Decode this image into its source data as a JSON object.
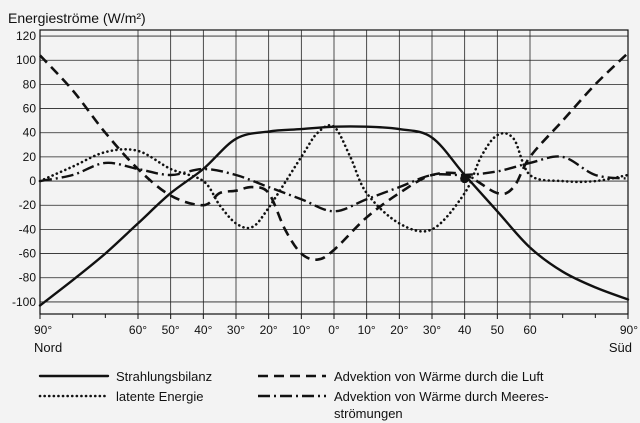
{
  "chart_data": {
    "type": "line",
    "title": "Energieströme (W/m²)",
    "ylim": [
      -110,
      125
    ],
    "yticks": [
      120,
      100,
      80,
      60,
      40,
      20,
      0,
      -20,
      -40,
      -60,
      -80,
      -100
    ],
    "x_ticks": [
      {
        "deg": 90,
        "label": "90°"
      },
      {
        "deg": 60,
        "label": "60°"
      },
      {
        "deg": 50,
        "label": "50°"
      },
      {
        "deg": 40,
        "label": "40°"
      },
      {
        "deg": 30,
        "label": "30°"
      },
      {
        "deg": 20,
        "label": "20°"
      },
      {
        "deg": 10,
        "label": "10°"
      },
      {
        "deg": 0,
        "label": "0°"
      },
      {
        "deg": -10,
        "label": "10°"
      },
      {
        "deg": -20,
        "label": "20°"
      },
      {
        "deg": -30,
        "label": "30°"
      },
      {
        "deg": -40,
        "label": "40"
      },
      {
        "deg": -50,
        "label": "50"
      },
      {
        "deg": -60,
        "label": "60"
      },
      {
        "deg": -90,
        "label": "90°"
      }
    ],
    "x_end_labels": {
      "left": "Nord",
      "right": "Süd"
    },
    "series": [
      {
        "name": "Strahlungsbilanz",
        "style": "solid",
        "points": [
          [
            90,
            -103
          ],
          [
            80,
            -82
          ],
          [
            70,
            -60
          ],
          [
            60,
            -35
          ],
          [
            50,
            -10
          ],
          [
            40,
            10
          ],
          [
            30,
            35
          ],
          [
            20,
            41
          ],
          [
            10,
            43
          ],
          [
            0,
            45
          ],
          [
            -10,
            45
          ],
          [
            -20,
            43
          ],
          [
            -30,
            36
          ],
          [
            -40,
            5
          ],
          [
            -50,
            -25
          ],
          [
            -60,
            -55
          ],
          [
            -70,
            -75
          ],
          [
            -80,
            -88
          ],
          [
            -90,
            -98
          ]
        ]
      },
      {
        "name": "Advektion von Wärme durch die Luft",
        "style": "dashed",
        "points": [
          [
            90,
            104
          ],
          [
            80,
            75
          ],
          [
            70,
            40
          ],
          [
            60,
            10
          ],
          [
            50,
            -12
          ],
          [
            40,
            -20
          ],
          [
            35,
            -10
          ],
          [
            30,
            -8
          ],
          [
            25,
            -5
          ],
          [
            20,
            -10
          ],
          [
            15,
            -40
          ],
          [
            10,
            -60
          ],
          [
            5,
            -65
          ],
          [
            0,
            -57
          ],
          [
            -10,
            -30
          ],
          [
            -20,
            -10
          ],
          [
            -30,
            5
          ],
          [
            -40,
            5
          ],
          [
            -50,
            -10
          ],
          [
            -55,
            -5
          ],
          [
            -60,
            20
          ],
          [
            -70,
            50
          ],
          [
            -80,
            80
          ],
          [
            -90,
            106
          ]
        ]
      },
      {
        "name": "latente Energie",
        "style": "dotted",
        "points": [
          [
            90,
            0
          ],
          [
            80,
            12
          ],
          [
            70,
            24
          ],
          [
            60,
            25
          ],
          [
            50,
            10
          ],
          [
            40,
            0
          ],
          [
            35,
            -20
          ],
          [
            30,
            -35
          ],
          [
            25,
            -38
          ],
          [
            20,
            -22
          ],
          [
            10,
            20
          ],
          [
            5,
            40
          ],
          [
            0,
            45
          ],
          [
            -5,
            20
          ],
          [
            -10,
            -10
          ],
          [
            -20,
            -35
          ],
          [
            -30,
            -40
          ],
          [
            -40,
            -10
          ],
          [
            -45,
            20
          ],
          [
            -50,
            38
          ],
          [
            -55,
            35
          ],
          [
            -60,
            5
          ],
          [
            -70,
            0
          ],
          [
            -80,
            0
          ],
          [
            -90,
            5
          ]
        ]
      },
      {
        "name": "Advektion von Wärme durch Meeresströmungen",
        "style": "dashdot",
        "points": [
          [
            90,
            0
          ],
          [
            80,
            5
          ],
          [
            70,
            15
          ],
          [
            60,
            10
          ],
          [
            50,
            5
          ],
          [
            40,
            10
          ],
          [
            30,
            5
          ],
          [
            20,
            -5
          ],
          [
            10,
            -15
          ],
          [
            0,
            -25
          ],
          [
            -10,
            -15
          ],
          [
            -20,
            -5
          ],
          [
            -30,
            5
          ],
          [
            -40,
            5
          ],
          [
            -50,
            8
          ],
          [
            -60,
            15
          ],
          [
            -70,
            20
          ],
          [
            -80,
            5
          ],
          [
            -90,
            2
          ]
        ]
      }
    ],
    "legend": [
      {
        "label": "Strahlungsbilanz",
        "style": "solid"
      },
      {
        "label": "latente Energie",
        "style": "dotted"
      },
      {
        "label": "Advektion von Wärme durch die Luft",
        "style": "dashed"
      },
      {
        "label": "Advektion von Wärme durch Meeres-",
        "label2": "strömungen",
        "style": "dashdot"
      }
    ],
    "grid": true
  }
}
